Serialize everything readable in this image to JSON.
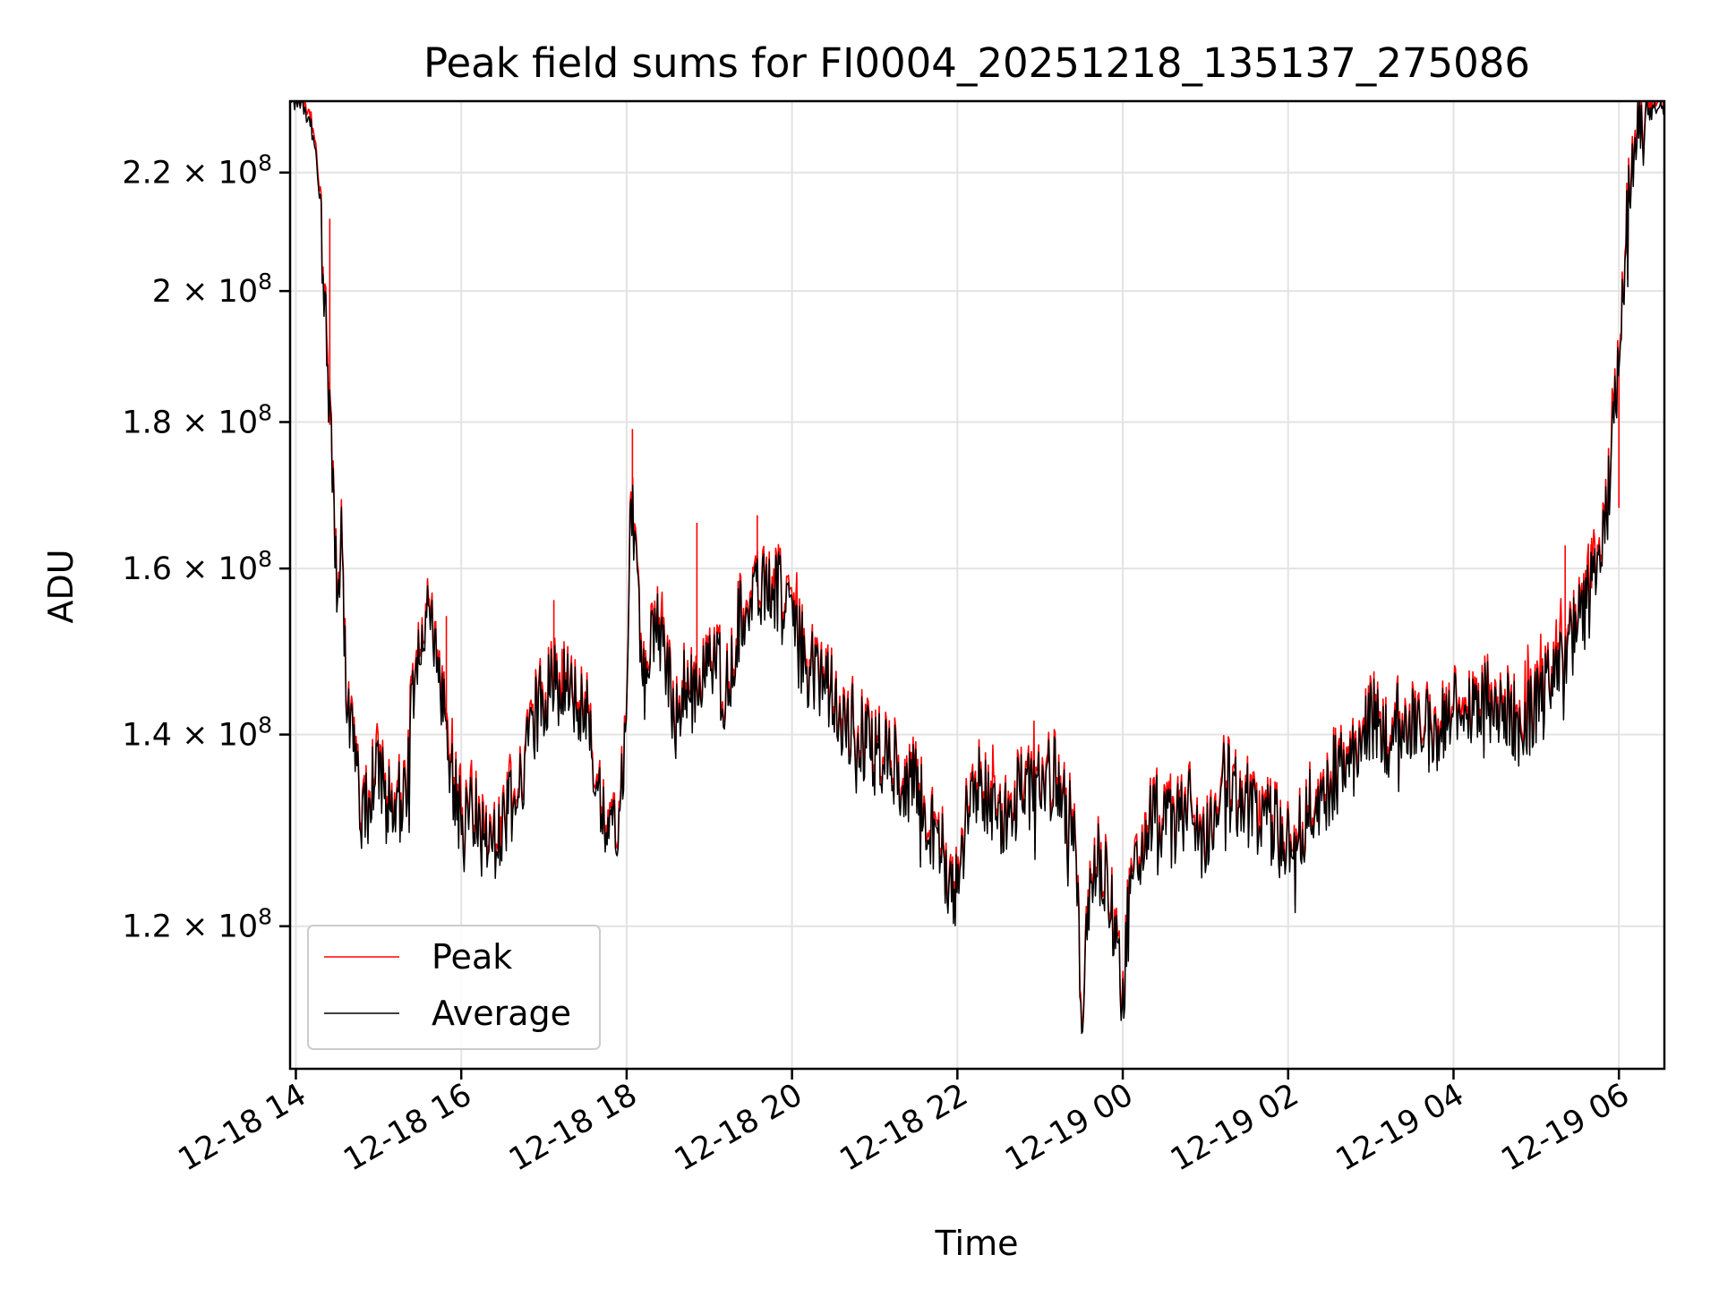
{
  "chart_data": {
    "type": "line",
    "title": "Peak field sums for FI0004_20251218_135137_275086",
    "xlabel": "Time",
    "ylabel": "ADU",
    "yscale": "log",
    "ylim": [
      107000000,
      233000000
    ],
    "xlim_hours": [
      -0.07,
      16.55
    ],
    "grid": true,
    "legend_location": "lower left",
    "x_ticks": [
      {
        "label": "12-18 14",
        "hours": 0
      },
      {
        "label": "12-18 16",
        "hours": 2
      },
      {
        "label": "12-18 18",
        "hours": 4
      },
      {
        "label": "12-18 20",
        "hours": 6
      },
      {
        "label": "12-18 22",
        "hours": 8
      },
      {
        "label": "12-19 00",
        "hours": 10
      },
      {
        "label": "12-19 02",
        "hours": 12
      },
      {
        "label": "12-19 04",
        "hours": 14
      },
      {
        "label": "12-19 06",
        "hours": 16
      }
    ],
    "y_ticks": [
      {
        "value": 120000000,
        "mantissa": "1.2"
      },
      {
        "value": 140000000,
        "mantissa": "1.4"
      },
      {
        "value": 160000000,
        "mantissa": "1.6"
      },
      {
        "value": 180000000,
        "mantissa": "1.8"
      },
      {
        "value": 200000000,
        "mantissa": "2"
      },
      {
        "value": 220000000,
        "mantissa": "2.2"
      }
    ],
    "y_tick_base": "10",
    "y_tick_exponent": "8",
    "series": [
      {
        "name": "Peak",
        "color": "#ff0000",
        "spikes": [
          {
            "hours": 0.41,
            "value": 212000000
          },
          {
            "hours": 4.07,
            "value": 179000000
          },
          {
            "hours": 4.85,
            "value": 166000000
          },
          {
            "hours": 5.58,
            "value": 167000000
          },
          {
            "hours": 3.12,
            "value": 156000000
          },
          {
            "hours": 1.82,
            "value": 154000000
          },
          {
            "hours": 15.35,
            "value": 163000000
          },
          {
            "hours": 15.67,
            "value": 164000000
          },
          {
            "hours": 16.0,
            "value": 168000000
          }
        ]
      },
      {
        "name": "Average",
        "color": "#000000",
        "hours": [
          -0.07,
          0.1,
          0.2,
          0.3,
          0.4,
          0.5,
          0.55,
          0.6,
          0.7,
          0.8,
          0.9,
          1.0,
          1.1,
          1.2,
          1.3,
          1.4,
          1.5,
          1.6,
          1.7,
          1.8,
          1.9,
          2.0,
          2.1,
          2.2,
          2.3,
          2.5,
          2.6,
          2.7,
          2.9,
          3.1,
          3.3,
          3.5,
          3.7,
          3.8,
          3.9,
          4.0,
          4.05,
          4.2,
          4.3,
          4.4,
          4.6,
          4.7,
          4.8,
          5.0,
          5.2,
          5.4,
          5.6,
          5.8,
          6.0,
          6.2,
          6.5,
          6.8,
          7.0,
          7.2,
          7.5,
          7.8,
          7.95,
          8.2,
          8.5,
          8.8,
          9.0,
          9.2,
          9.4,
          9.45,
          9.5,
          9.6,
          9.7,
          9.8,
          9.9,
          10.0,
          10.1,
          10.2,
          10.4,
          10.6,
          10.8,
          11.0,
          11.2,
          11.4,
          11.6,
          11.8,
          12.0,
          12.2,
          12.4,
          12.6,
          12.8,
          13.0,
          13.2,
          13.4,
          13.6,
          13.8,
          14.0,
          14.2,
          14.4,
          14.6,
          14.8,
          15.0,
          15.2,
          15.4,
          15.6,
          15.8,
          15.9,
          16.0,
          16.1,
          16.2,
          16.3,
          16.4,
          16.55
        ],
        "values": [
          233000000,
          232000000,
          228000000,
          215000000,
          182000000,
          158000000,
          164000000,
          146000000,
          140000000,
          130000000,
          133000000,
          137000000,
          132000000,
          134000000,
          132000000,
          142000000,
          150000000,
          155000000,
          148000000,
          142000000,
          135000000,
          131000000,
          133000000,
          130000000,
          128000000,
          130000000,
          132000000,
          135000000,
          142000000,
          146000000,
          145000000,
          143000000,
          133000000,
          130000000,
          129000000,
          144000000,
          170000000,
          146000000,
          150000000,
          152000000,
          142000000,
          146000000,
          144000000,
          150000000,
          145000000,
          155000000,
          158000000,
          158000000,
          152000000,
          148000000,
          144000000,
          140000000,
          138000000,
          137000000,
          134000000,
          128000000,
          122000000,
          135000000,
          131000000,
          134000000,
          134000000,
          136000000,
          129000000,
          124000000,
          109000000,
          124000000,
          126000000,
          124000000,
          120000000,
          114000000,
          124000000,
          128000000,
          131000000,
          130000000,
          132000000,
          128000000,
          135000000,
          133000000,
          132000000,
          130000000,
          128000000,
          131000000,
          133000000,
          136000000,
          138000000,
          142000000,
          140000000,
          142000000,
          141000000,
          140000000,
          143000000,
          142000000,
          144000000,
          143000000,
          141000000,
          143000000,
          146000000,
          150000000,
          155000000,
          162000000,
          172000000,
          190000000,
          212000000,
          226000000,
          229000000,
          231000000,
          232000000
        ]
      }
    ]
  }
}
